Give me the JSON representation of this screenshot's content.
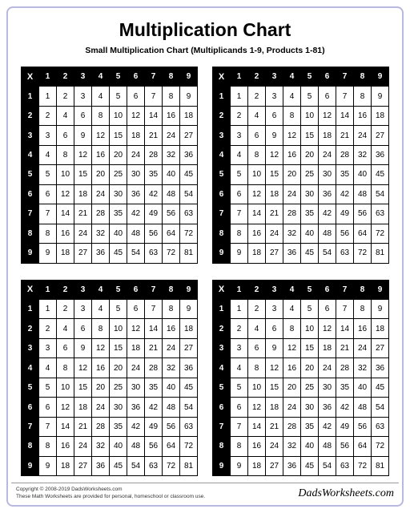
{
  "title": "Multiplication Chart",
  "subtitle": "Small Multiplication Chart (Multiplicands 1-9, Products 1-81)",
  "corner_symbol": "X",
  "headers": [
    1,
    2,
    3,
    4,
    5,
    6,
    7,
    8,
    9
  ],
  "table_count": 4,
  "colors": {
    "outer_border": "#b8b8e0",
    "header_bg": "#000000",
    "header_fg": "#ffffff",
    "cell_bg": "#ffffff",
    "cell_fg": "#000000",
    "grid_line": "#000000"
  },
  "typography": {
    "title_fontsize": 23,
    "subtitle_fontsize": 10.5,
    "cell_fontsize": 10,
    "footer_fontsize": 6.5,
    "brand_fontsize": 14
  },
  "footer": {
    "copyright": "Copyright © 2008-2019 DadsWorksheets.com",
    "note": "These Math Worksheets are provided for personal, homeschool or classroom use.",
    "brand": "DadsWorksheets.com"
  }
}
